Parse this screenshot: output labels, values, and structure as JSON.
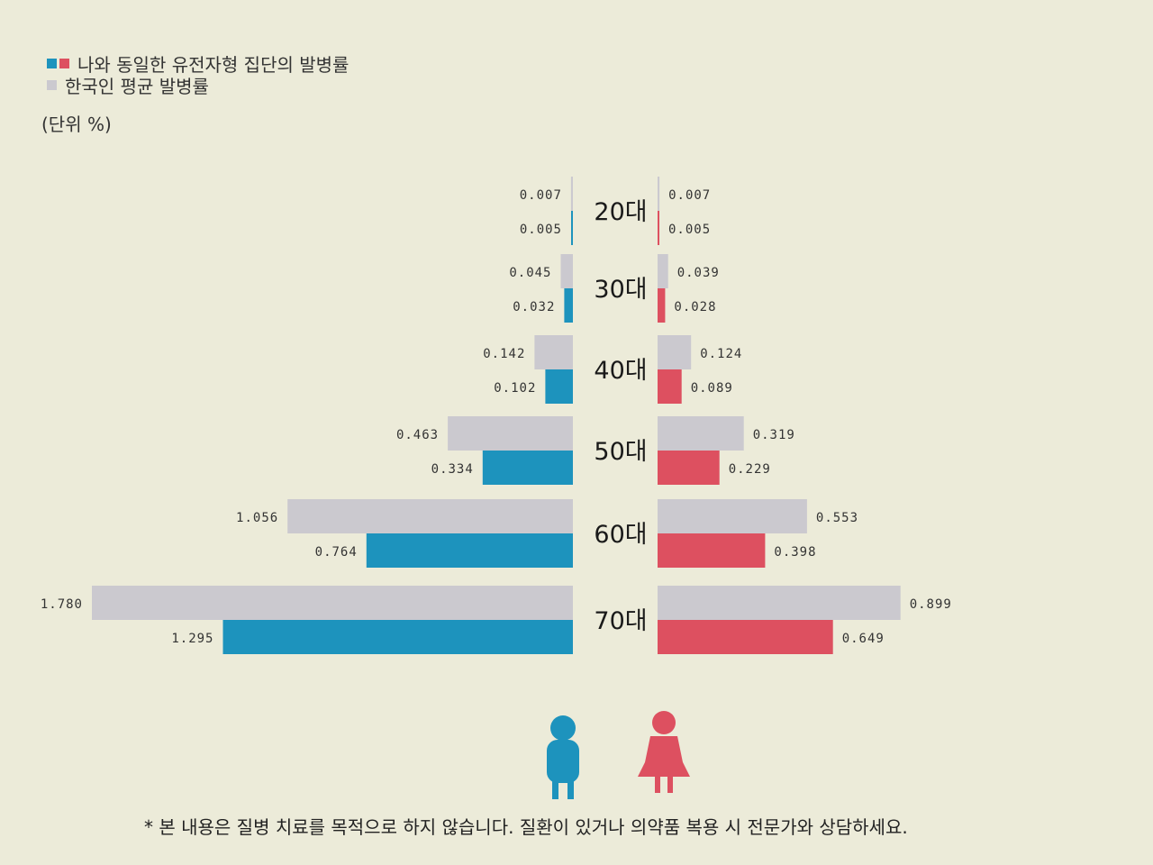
{
  "legend": {
    "group_label": "나와 동일한 유전자형 집단의 발병률",
    "average_label": "한국인 평균 발병률",
    "unit": "(단위 %)"
  },
  "colors": {
    "male_group": "#1d93bd",
    "female_group": "#dd5060",
    "average": "#cbc9cf",
    "background": "#ecebd9"
  },
  "icons": [
    "male-person-icon",
    "female-person-icon"
  ],
  "chart_data": {
    "type": "bar",
    "categories": [
      "20대",
      "30대",
      "40대",
      "50대",
      "60대",
      "70대"
    ],
    "series": [
      {
        "side": "left",
        "kind": "average",
        "values": [
          0.007,
          0.045,
          0.142,
          0.463,
          1.056,
          1.78
        ]
      },
      {
        "side": "left",
        "kind": "group",
        "values": [
          0.005,
          0.032,
          0.102,
          0.334,
          0.764,
          1.295
        ]
      },
      {
        "side": "right",
        "kind": "average",
        "values": [
          0.007,
          0.039,
          0.124,
          0.319,
          0.553,
          0.899
        ]
      },
      {
        "side": "right",
        "kind": "group",
        "values": [
          0.005,
          0.028,
          0.089,
          0.229,
          0.398,
          0.649
        ]
      }
    ],
    "value_labels": {
      "left_average": [
        "0.007",
        "0.045",
        "0.142",
        "0.463",
        "1.056",
        "1.780"
      ],
      "left_group": [
        "0.005",
        "0.032",
        "0.102",
        "0.334",
        "0.764",
        "1.295"
      ],
      "right_average": [
        "0.007",
        "0.039",
        "0.124",
        "0.319",
        "0.553",
        "0.899"
      ],
      "right_group": [
        "0.005",
        "0.028",
        "0.089",
        "0.229",
        "0.398",
        "0.649"
      ]
    }
  },
  "footnote": "* 본 내용은 질병 치료를 목적으로 하지 않습니다. 질환이 있거나 의약품 복용 시 전문가와 상담하세요."
}
